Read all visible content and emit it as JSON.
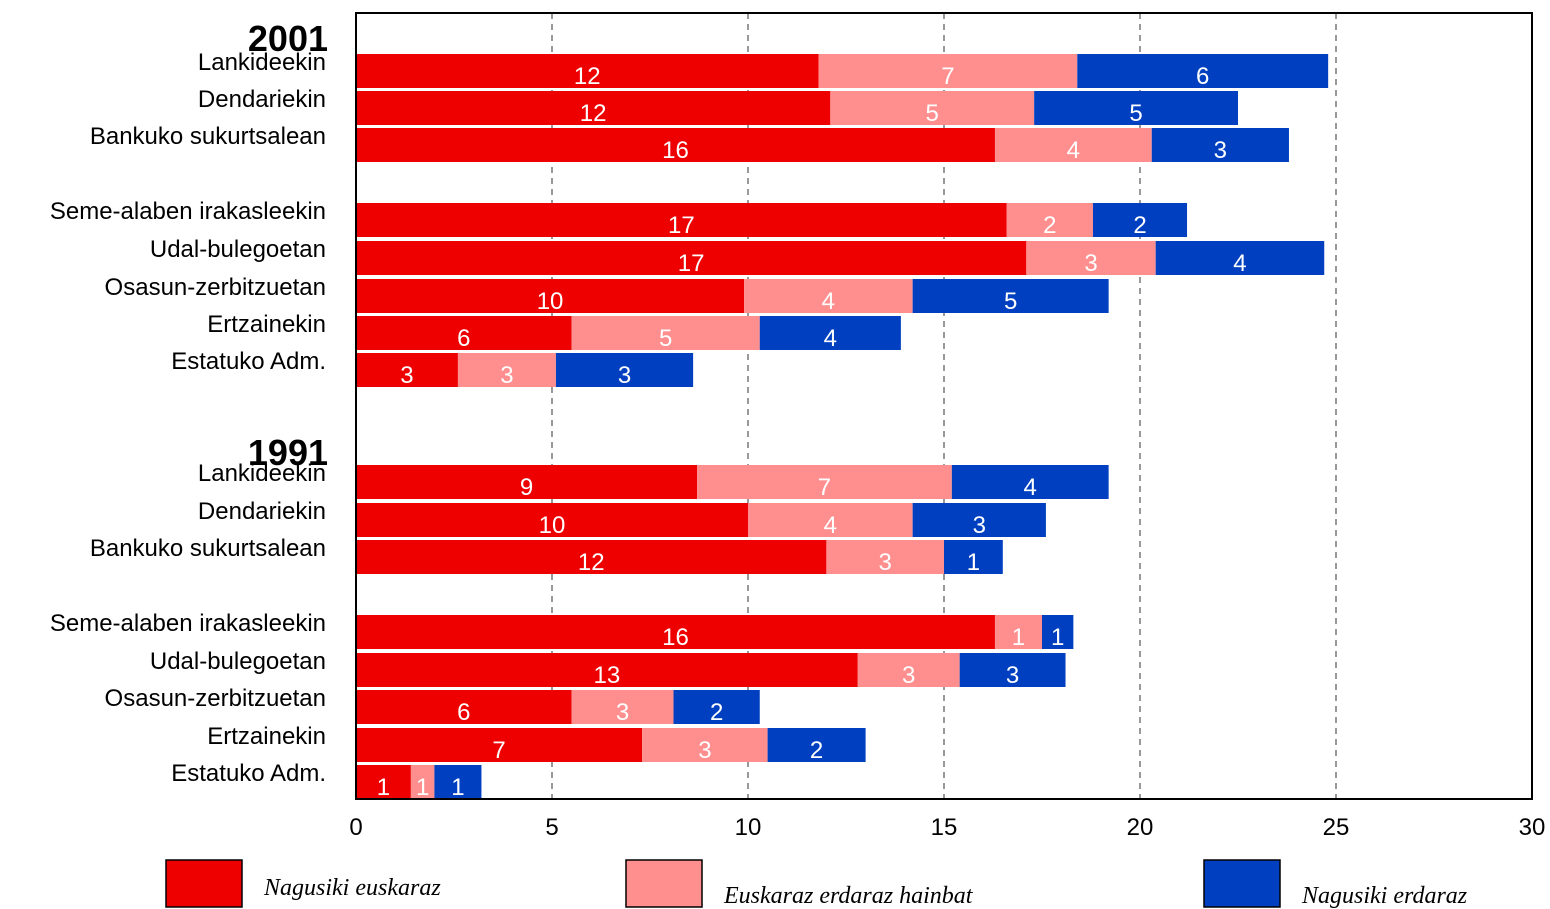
{
  "chart_data": {
    "type": "bar",
    "orientation": "horizontal",
    "stacked": true,
    "title": "",
    "xlabel": "",
    "ylabel": "",
    "xlim": [
      0,
      30
    ],
    "xticks": [
      0,
      5,
      10,
      15,
      20,
      25,
      30
    ],
    "grid": "vertical dashed",
    "legend": {
      "placement": "bottom",
      "entries": [
        "Nagusiki euskaraz",
        "Euskaraz erdaraz hainbat",
        "Nagusiki erdaraz"
      ]
    },
    "colors": {
      "s0": "#ee0000",
      "s1": "#ff8f8f",
      "s2": "#0040c0"
    },
    "groups": [
      {
        "label": "2001",
        "rows": [
          {
            "category": "Lankideekin",
            "values": [
              11.8,
              6.6,
              6.4
            ],
            "labels": [
              "12",
              "7",
              "6"
            ]
          },
          {
            "category": "Dendariekin",
            "values": [
              12.1,
              5.2,
              5.2
            ],
            "labels": [
              "12",
              "5",
              "5"
            ]
          },
          {
            "category": "Bankuko sukurtsalean",
            "values": [
              16.3,
              4.0,
              3.5
            ],
            "labels": [
              "16",
              "4",
              "3"
            ]
          },
          {
            "category": "Seme-alaben irakasleekin",
            "values": [
              16.6,
              2.2,
              2.4
            ],
            "labels": [
              "17",
              "2",
              "2"
            ]
          },
          {
            "category": "Udal-bulegoetan",
            "values": [
              17.1,
              3.3,
              4.3
            ],
            "labels": [
              "17",
              "3",
              "4"
            ]
          },
          {
            "category": "Osasun-zerbitzuetan",
            "values": [
              9.9,
              4.3,
              5.0
            ],
            "labels": [
              "10",
              "4",
              "5"
            ]
          },
          {
            "category": "Ertzainekin",
            "values": [
              5.5,
              4.8,
              3.6
            ],
            "labels": [
              "6",
              "5",
              "4"
            ]
          },
          {
            "category": "Estatuko Adm.",
            "values": [
              2.6,
              2.5,
              3.5
            ],
            "labels": [
              "3",
              "3",
              "3"
            ]
          }
        ]
      },
      {
        "label": "1991",
        "rows": [
          {
            "category": "Lankideekin",
            "values": [
              8.7,
              6.5,
              4.0
            ],
            "labels": [
              "9",
              "7",
              "4"
            ]
          },
          {
            "category": "Dendariekin",
            "values": [
              10.0,
              4.2,
              3.4
            ],
            "labels": [
              "10",
              "4",
              "3"
            ]
          },
          {
            "category": "Bankuko sukurtsalean",
            "values": [
              12.0,
              3.0,
              1.5
            ],
            "labels": [
              "12",
              "3",
              "1"
            ]
          },
          {
            "category": "Seme-alaben irakasleekin",
            "values": [
              16.3,
              1.2,
              0.8
            ],
            "labels": [
              "16",
              "1",
              "1"
            ]
          },
          {
            "category": "Udal-bulegoetan",
            "values": [
              12.8,
              2.6,
              2.7
            ],
            "labels": [
              "13",
              "3",
              "3"
            ]
          },
          {
            "category": "Osasun-zerbitzuetan",
            "values": [
              5.5,
              2.6,
              2.2
            ],
            "labels": [
              "6",
              "3",
              "2"
            ]
          },
          {
            "category": "Ertzainekin",
            "values": [
              7.3,
              3.2,
              2.5
            ],
            "labels": [
              "7",
              "3",
              "2"
            ]
          },
          {
            "category": "Estatuko Adm.",
            "values": [
              1.4,
              0.6,
              1.2
            ],
            "labels": [
              "1",
              "1",
              "1"
            ]
          }
        ]
      }
    ]
  }
}
